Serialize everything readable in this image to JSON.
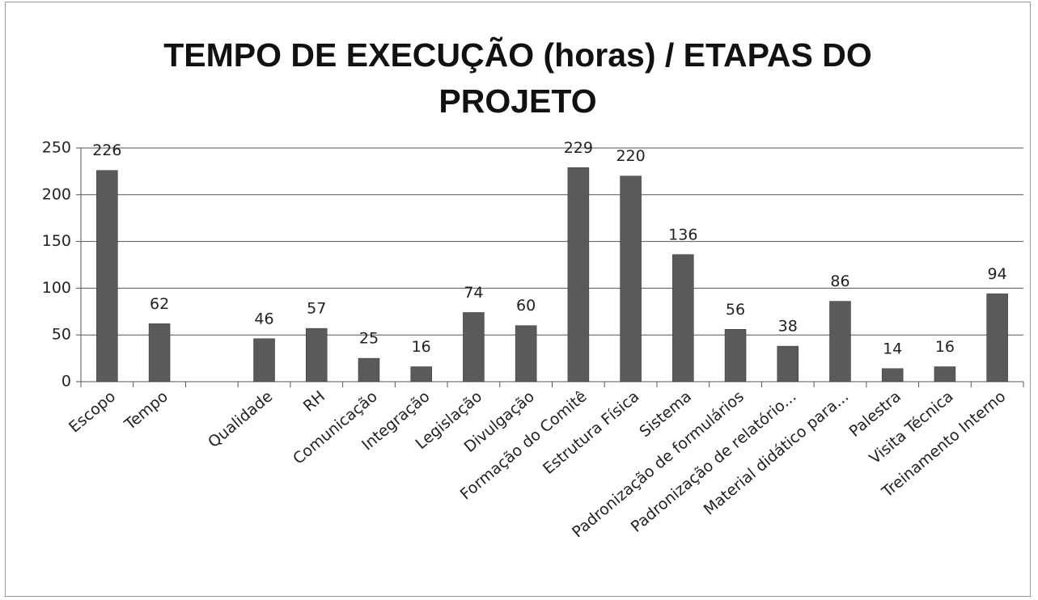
{
  "chart_data": {
    "type": "bar",
    "title": "TEMPO DE EXECUÇÃO (horas) / ETAPAS DO PROJETO",
    "categories": [
      "Escopo",
      "Tempo",
      null,
      "Qualidade",
      "RH",
      "Comunicação",
      "Integração",
      "Legislação",
      "Divulgação",
      "Formação do Comitê",
      "Estrutura Física",
      "Sistema",
      "Padronização de formulários",
      "Padronização de relatório...",
      "Material didático para...",
      "Palestra",
      "Visita Técnica",
      "Treinamento Interno"
    ],
    "values": [
      226,
      62,
      null,
      46,
      57,
      25,
      16,
      74,
      60,
      229,
      220,
      136,
      56,
      38,
      86,
      14,
      16,
      94
    ],
    "color": "#5a5a5a",
    "ylim": [
      0,
      250
    ],
    "yticks": [
      0,
      50,
      100,
      150,
      200,
      250
    ],
    "grid": true
  }
}
